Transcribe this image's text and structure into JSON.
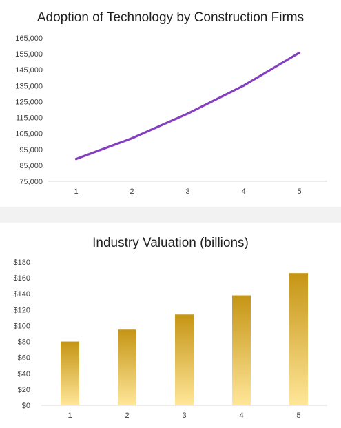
{
  "chart_data": [
    {
      "type": "line",
      "title": "Adoption of Technology by Construction Firms",
      "xlabel": "",
      "ylabel": "",
      "categories": [
        "1",
        "2",
        "3",
        "4",
        "5"
      ],
      "values": [
        89000,
        102000,
        117500,
        135000,
        155700
      ],
      "ylim": [
        75000,
        165000
      ],
      "yticks": [
        75000,
        85000,
        95000,
        105000,
        115000,
        125000,
        135000,
        145000,
        155000,
        165000
      ],
      "ytick_labels": [
        "75,000",
        "85,000",
        "95,000",
        "105,000",
        "115,000",
        "125,000",
        "135,000",
        "145,000",
        "155,000",
        "165,000"
      ],
      "grid": false,
      "color": "#8540c0"
    },
    {
      "type": "bar",
      "title": "Industry Valuation (billions)",
      "xlabel": "",
      "ylabel": "",
      "categories": [
        "1",
        "2",
        "3",
        "4",
        "5"
      ],
      "values": [
        80,
        95,
        114,
        138,
        166
      ],
      "ylim": [
        0,
        180
      ],
      "yticks": [
        0,
        20,
        40,
        60,
        80,
        100,
        120,
        140,
        160,
        180
      ],
      "ytick_labels": [
        "$0",
        "$20",
        "$40",
        "$60",
        "$80",
        "$100",
        "$120",
        "$140",
        "$160",
        "$180"
      ],
      "grid": false,
      "colors": {
        "top": "#c59514",
        "bottom": "#ffe699"
      }
    }
  ]
}
